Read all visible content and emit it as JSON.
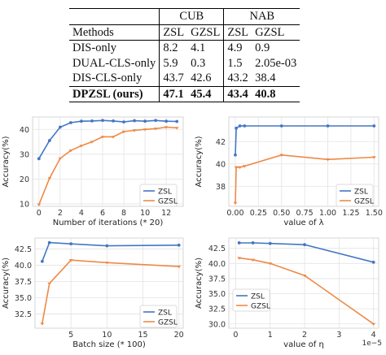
{
  "caption_fragment": "",
  "table": {
    "group_headers": [
      "CUB",
      "NAB"
    ],
    "columns": [
      "Methods",
      "ZSL",
      "GZSL",
      "ZSL",
      "GZSL"
    ],
    "rows": [
      {
        "method": "DIS-only",
        "values": [
          "8.2",
          "4.1",
          "4.9",
          "0.9"
        ],
        "bold": false
      },
      {
        "method": "DUAL-CLS-only",
        "values": [
          "5.9",
          "0.3",
          "1.5",
          "2.05e-03"
        ],
        "bold": false
      },
      {
        "method": "DIS-CLS-only",
        "values": [
          "43.7",
          "42.6",
          "43.2",
          "38.4"
        ],
        "bold": false
      },
      {
        "method": "DPZSL (ours)",
        "values": [
          "47.1",
          "45.4",
          "43.4",
          "40.8"
        ],
        "bold": true
      }
    ]
  },
  "colors": {
    "zsl": "#4477c4",
    "gzsl": "#ee8a46",
    "grid": "#e3e3e3"
  },
  "chart_data": [
    {
      "type": "line",
      "xlabel": "Number of iterations (* 20)",
      "ylabel": "Accuracy(%)",
      "xlim": [
        -0.6,
        13.6
      ],
      "ylim": [
        9,
        45
      ],
      "xticks": [
        "0",
        "2",
        "4",
        "6",
        "8",
        "10",
        "12"
      ],
      "xtick_values": [
        0,
        2,
        4,
        6,
        8,
        10,
        12
      ],
      "yticks": [
        "10",
        "20",
        "30",
        "40"
      ],
      "ytick_values": [
        10,
        20,
        30,
        40
      ],
      "legend": "bottom-right",
      "series": [
        {
          "name": "ZSL",
          "x": [
            0,
            1,
            2,
            3,
            4,
            5,
            6,
            7,
            8,
            9,
            10,
            11,
            12,
            13
          ],
          "values": [
            28.2,
            35.5,
            40.9,
            42.7,
            43.3,
            43.4,
            43.6,
            43.4,
            43.0,
            43.5,
            43.3,
            43.6,
            43.3,
            43.2
          ]
        },
        {
          "name": "GZSL",
          "x": [
            0,
            1,
            2,
            3,
            4,
            5,
            6,
            7,
            8,
            9,
            10,
            11,
            12,
            13
          ],
          "values": [
            9.7,
            20.3,
            28.3,
            31.5,
            33.4,
            35.0,
            37.0,
            37.0,
            39.1,
            39.6,
            40.0,
            40.3,
            40.9,
            40.6
          ]
        }
      ]
    },
    {
      "type": "line",
      "xlabel": "value of λ",
      "ylabel": "Accuracy(%)",
      "xlim": [
        -0.07,
        1.55
      ],
      "ylim": [
        36.2,
        44.2
      ],
      "xticks": [
        "0.00",
        "0.25",
        "0.50",
        "0.75",
        "1.00",
        "1.25",
        "1.50"
      ],
      "xtick_values": [
        0,
        0.25,
        0.5,
        0.75,
        1.0,
        1.25,
        1.5
      ],
      "yticks": [
        "38",
        "40",
        "42"
      ],
      "ytick_values": [
        38,
        40,
        42
      ],
      "legend": "bottom-right",
      "series": [
        {
          "name": "ZSL",
          "x": [
            0,
            0.01,
            0.05,
            0.1,
            0.5,
            1.0,
            1.5
          ],
          "values": [
            40.8,
            43.2,
            43.4,
            43.4,
            43.4,
            43.4,
            43.4
          ]
        },
        {
          "name": "GZSL",
          "x": [
            0,
            0.01,
            0.05,
            0.1,
            0.5,
            1.0,
            1.5
          ],
          "values": [
            36.5,
            39.7,
            39.7,
            39.8,
            40.8,
            40.4,
            40.6
          ]
        }
      ]
    },
    {
      "type": "line",
      "xlabel": "Batch size (* 100)",
      "ylabel": "Accuracy(%)",
      "xlim": [
        0,
        20.6
      ],
      "ylim": [
        30.3,
        44.2
      ],
      "xticks": [
        "5",
        "10",
        "15",
        "20"
      ],
      "xtick_values": [
        5,
        10,
        15,
        20
      ],
      "yticks": [
        "32.5",
        "35.0",
        "37.5",
        "40.0",
        "42.5"
      ],
      "ytick_values": [
        32.5,
        35.0,
        37.5,
        40.0,
        42.5
      ],
      "legend": "bottom-right",
      "series": [
        {
          "name": "ZSL",
          "x": [
            1,
            2,
            5,
            10,
            20
          ],
          "values": [
            40.6,
            43.5,
            43.3,
            43.0,
            43.1
          ]
        },
        {
          "name": "GZSL",
          "x": [
            1,
            2,
            5,
            10,
            20
          ],
          "values": [
            31.0,
            37.2,
            40.8,
            40.4,
            39.8
          ]
        }
      ]
    },
    {
      "type": "line",
      "xlabel": "value of η",
      "ylabel": "Accuracy(%)",
      "xlim": [
        -0.2,
        4.15
      ],
      "ylim": [
        29.3,
        44.2
      ],
      "xticks": [
        "0",
        "1",
        "2",
        "3",
        "4"
      ],
      "xtick_values": [
        0,
        1,
        2,
        3,
        4
      ],
      "yticks": [
        "30.0",
        "32.5",
        "35.0",
        "37.5",
        "40.0",
        "42.5"
      ],
      "ytick_values": [
        30.0,
        32.5,
        35.0,
        37.5,
        40.0,
        42.5
      ],
      "offset_label": "1e−5",
      "legend": "bottom-left",
      "series": [
        {
          "name": "ZSL",
          "x": [
            0.1,
            0.5,
            1,
            2,
            4
          ],
          "values": [
            43.4,
            43.4,
            43.3,
            43.1,
            40.2
          ]
        },
        {
          "name": "GZSL",
          "x": [
            0.1,
            0.5,
            1,
            2,
            4
          ],
          "values": [
            40.9,
            40.6,
            40.0,
            38.0,
            30.0
          ]
        }
      ]
    }
  ]
}
